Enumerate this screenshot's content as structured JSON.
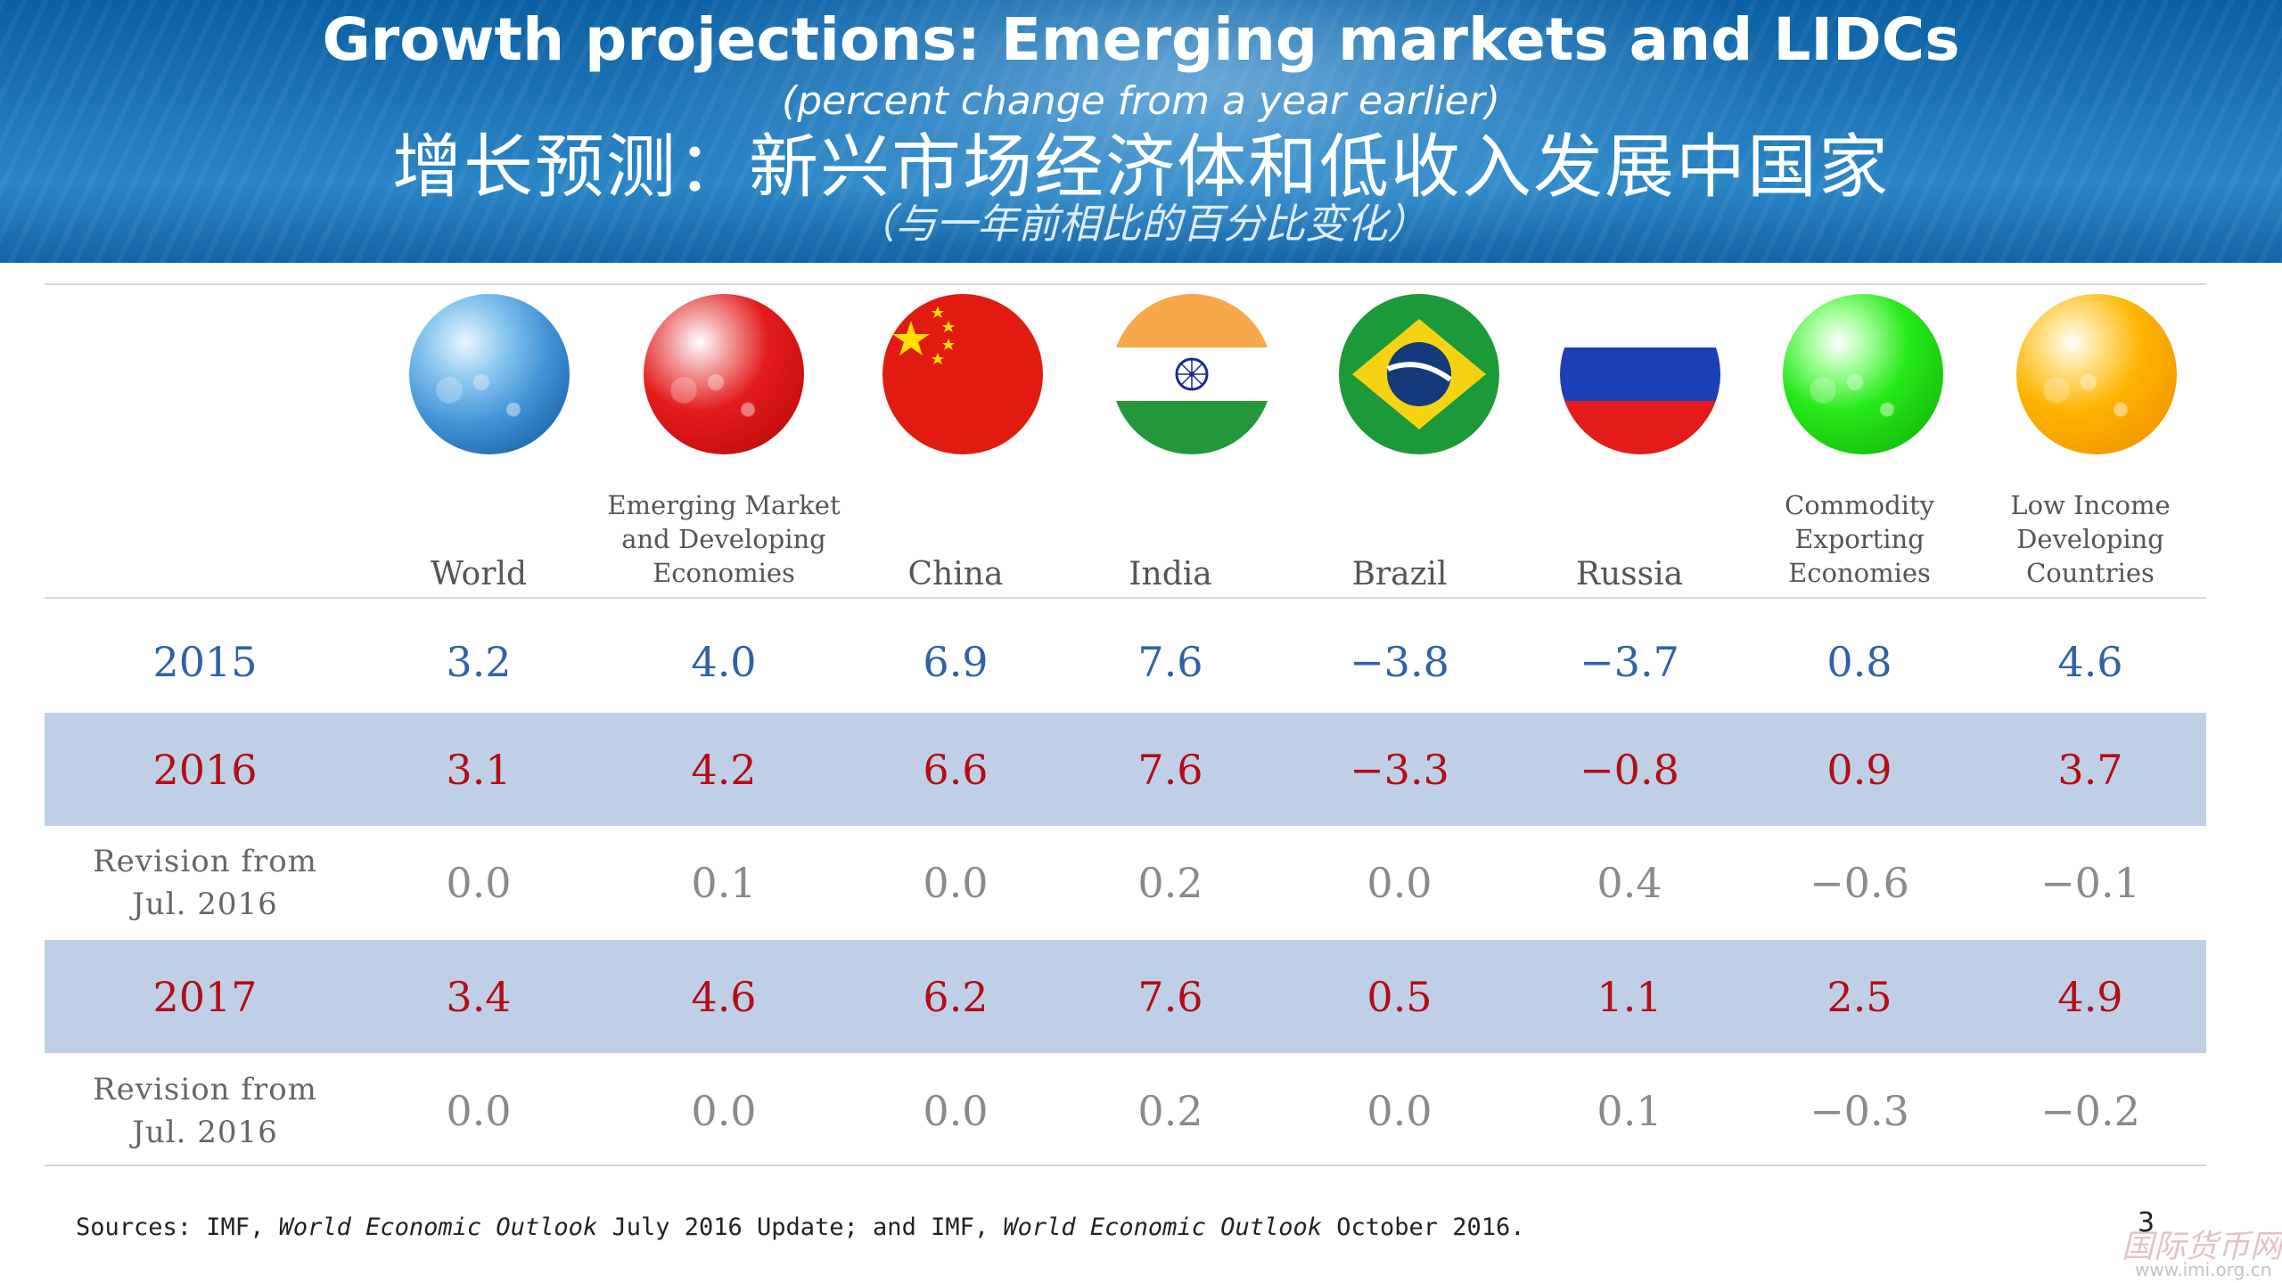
{
  "header": {
    "title_en": "Growth projections:  Emerging markets and LIDCs",
    "subtitle_en": "(percent change from a year earlier)",
    "title_zh": "增长预测：新兴市场经济体和低收入发展中国家",
    "subtitle_zh": "（与一年前相比的百分比变化）"
  },
  "columns": [
    {
      "label": "World",
      "icon": "world-globe-icon",
      "color": "#3f92d4"
    },
    {
      "label": "Emerging Market\nand Developing\nEconomies",
      "icon": "red-globe-icon",
      "color": "#e41b1b"
    },
    {
      "label": "China",
      "icon": "china-flag-icon"
    },
    {
      "label": "India",
      "icon": "india-flag-icon"
    },
    {
      "label": "Brazil",
      "icon": "brazil-flag-icon"
    },
    {
      "label": "Russia",
      "icon": "russia-flag-icon"
    },
    {
      "label": "Commodity\nExporting\nEconomies",
      "icon": "green-globe-icon",
      "color": "#27ea1a"
    },
    {
      "label": "Low Income\nDeveloping\nCountries",
      "icon": "orange-globe-icon",
      "color": "#ffb400"
    }
  ],
  "rows": [
    {
      "label": "2015",
      "style": "blue",
      "values": [
        "3.2",
        "4.0",
        "6.9",
        "7.6",
        "−3.8",
        "−3.7",
        "0.8",
        "4.6"
      ]
    },
    {
      "label": "2016",
      "style": "red",
      "values": [
        "3.1",
        "4.2",
        "6.6",
        "7.6",
        "−3.3",
        "−0.8",
        "0.9",
        "3.7"
      ]
    },
    {
      "label": "Revision from\nJul. 2016",
      "style": "gray",
      "values": [
        "0.0",
        "0.1",
        "0.0",
        "0.2",
        "0.0",
        "0.4",
        "−0.6",
        "−0.1"
      ]
    },
    {
      "label": "2017",
      "style": "red",
      "values": [
        "3.4",
        "4.6",
        "6.2",
        "7.6",
        "0.5",
        "1.1",
        "2.5",
        "4.9"
      ]
    },
    {
      "label": "Revision from\nJul. 2016",
      "style": "gray",
      "values": [
        "0.0",
        "0.0",
        "0.0",
        "0.2",
        "0.0",
        "0.1",
        "−0.3",
        "−0.2"
      ]
    }
  ],
  "colors": {
    "blue_text": "#2e62a8",
    "red_text": "#b40d16",
    "band": "#bfd0e6"
  },
  "footer": {
    "sources_a": "Sources: IMF, ",
    "sources_b": "World Economic Outlook",
    "sources_c": " July 2016 Update; and IMF, ",
    "sources_d": "World Economic Outlook",
    "sources_e": " October 2016.",
    "page_number": "3",
    "watermark": "国际货币网",
    "watermark_url": "www.imi.org.cn"
  }
}
